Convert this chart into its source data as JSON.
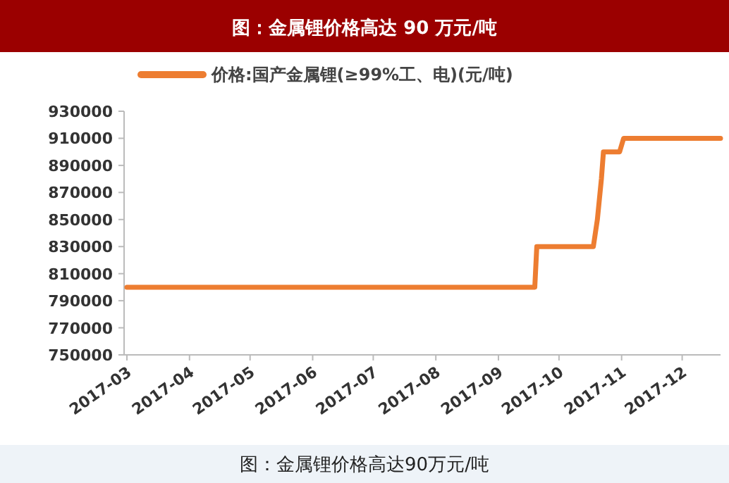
{
  "chart_data": {
    "type": "line",
    "title": "图：金属锂价格高达 90 万元/吨",
    "x": [
      "2017-03-01",
      "2017-09-19",
      "2017-09-20",
      "2017-10-18",
      "2017-10-19",
      "2017-10-20",
      "2017-10-22",
      "2017-10-23",
      "2017-10-31",
      "2017-11-02",
      "2017-12-20"
    ],
    "series": [
      {
        "name": "价格:国产金属锂(≥99%工、电)(元/吨)",
        "color": "#ed7d31",
        "values": [
          800000,
          800000,
          830000,
          830000,
          840000,
          850000,
          880000,
          900000,
          900000,
          910000,
          910000
        ]
      }
    ],
    "xlim": [
      "2017-03-01",
      "2017-12-20"
    ],
    "xticks": [
      {
        "value": "2017-03-01",
        "label": "2017-03"
      },
      {
        "value": "2017-04-01",
        "label": "2017-04"
      },
      {
        "value": "2017-05-01",
        "label": "2017-05"
      },
      {
        "value": "2017-06-01",
        "label": "2017-06"
      },
      {
        "value": "2017-07-01",
        "label": "2017-07"
      },
      {
        "value": "2017-08-01",
        "label": "2017-08"
      },
      {
        "value": "2017-09-01",
        "label": "2017-09"
      },
      {
        "value": "2017-10-01",
        "label": "2017-10"
      },
      {
        "value": "2017-11-01",
        "label": "2017-11"
      },
      {
        "value": "2017-12-01",
        "label": "2017-12"
      }
    ],
    "ylim": [
      750000,
      930000
    ],
    "yticks": [
      750000,
      770000,
      790000,
      810000,
      830000,
      850000,
      870000,
      890000,
      910000,
      930000
    ],
    "legend": "top",
    "marker": "none",
    "line_style": "solid",
    "annotations": [
      "图：金属锂价格高达90万元/吨"
    ]
  }
}
